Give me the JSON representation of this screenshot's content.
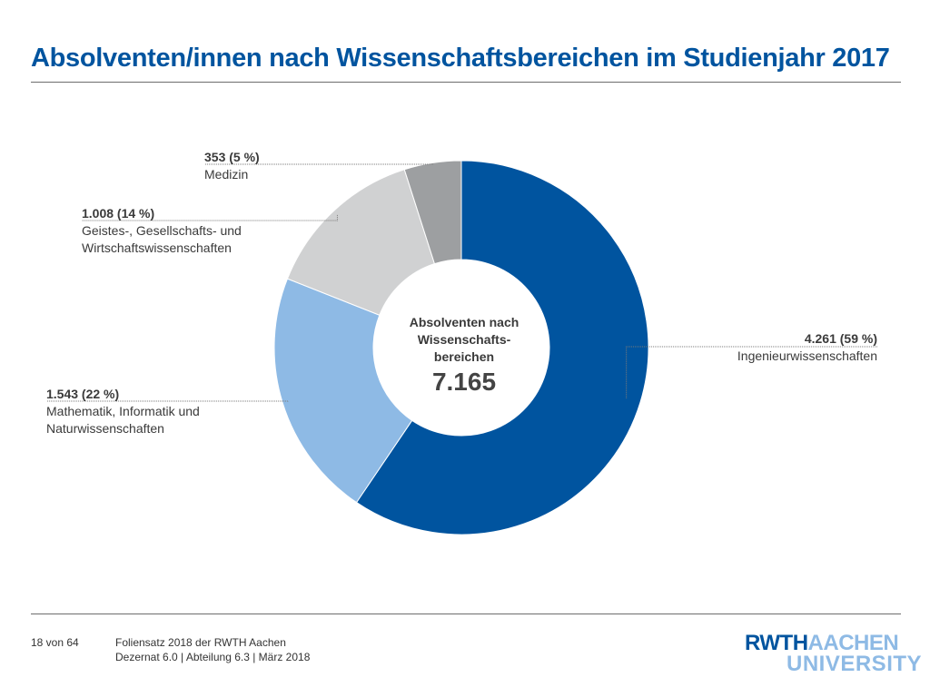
{
  "slide": {
    "title": "Absolventen/innen nach Wissenschaftsbereichen im Studienjahr 2017"
  },
  "chart_data": {
    "type": "pie",
    "variant": "donut",
    "title": "Absolventen nach Wissenschafts-bereichen",
    "center_title_lines": [
      "Absolventen nach",
      "Wissenschafts-",
      "bereichen"
    ],
    "total": "7.165",
    "slices": [
      {
        "name": "Ingenieurwissenschaften",
        "value": 4261,
        "value_label": "4.261 (59 %)",
        "color": "#00549f"
      },
      {
        "name": "Mathematik, Informatik und Naturwissenschaften",
        "value": 1543,
        "value_label": "1.543 (22 %)",
        "color": "#8ebae5"
      },
      {
        "name": "Geistes-, Gesellschafts- und Wirtschaftswissenschaften",
        "value": 1008,
        "value_label": "1.008 (14 %)",
        "color": "#d0d1d2"
      },
      {
        "name": "Medizin",
        "value": 353,
        "value_label": "353 (5 %)",
        "color": "#9d9fa1"
      }
    ],
    "label_lines": {
      "ing": [
        "Ingenieurwissenschaften"
      ],
      "mint": [
        "Mathematik, Informatik und",
        "Naturwissenschaften"
      ],
      "geist": [
        "Geistes-, Gesellschafts- und",
        "Wirtschaftswissenschaften"
      ],
      "med": [
        "Medizin"
      ]
    }
  },
  "footer": {
    "page": "18 von 64",
    "line1": "Foliensatz 2018 der RWTH Aachen",
    "line2": "Dezernat 6.0 | Abteilung 6.3 | März 2018"
  },
  "logo": {
    "part1": "RWTH",
    "part2": "AACHEN",
    "part3": "UNIVERSITY"
  }
}
